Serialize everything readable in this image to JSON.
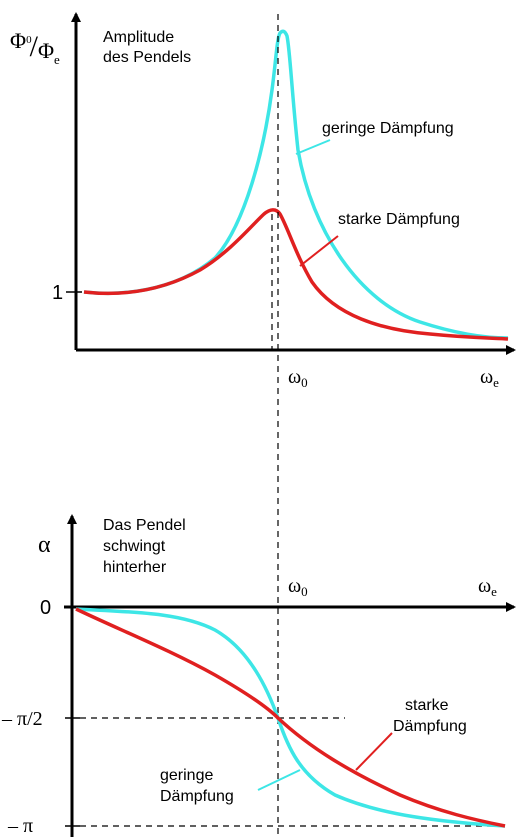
{
  "colors": {
    "weak_damping": "#3de6e6",
    "strong_damping": "#e02020",
    "axis": "#000000"
  },
  "top_plot": {
    "y_axis_label_num": "Φ",
    "y_axis_label_num_sub": "0",
    "y_axis_label_slash": "/",
    "y_axis_label_den": "Φ",
    "y_axis_label_den_sub": "e",
    "title_line1": "Amplitude",
    "title_line2": "des Pendels",
    "tick_1": "1",
    "omega0_label": "ω",
    "omega0_sub": "0",
    "omega_e_label": "ω",
    "omega_e_sub": "e",
    "weak_label": "geringe Dämpfung",
    "strong_label": "starke Dämpfung"
  },
  "bottom_plot": {
    "y_axis_label": "α",
    "title_line1": "Das Pendel",
    "title_line2": "schwingt",
    "title_line3": "hinterher",
    "tick_0": "0",
    "tick_half_pi": "– π/2",
    "tick_pi": "– π",
    "omega0_label": "ω",
    "omega0_sub": "0",
    "omega_e_label": "ω",
    "omega_e_sub": "e",
    "strong_label_line1": "starke",
    "strong_label_line2": "Dämpfung",
    "weak_label_line1": "geringe",
    "weak_label_line2": "Dämpfung"
  }
}
